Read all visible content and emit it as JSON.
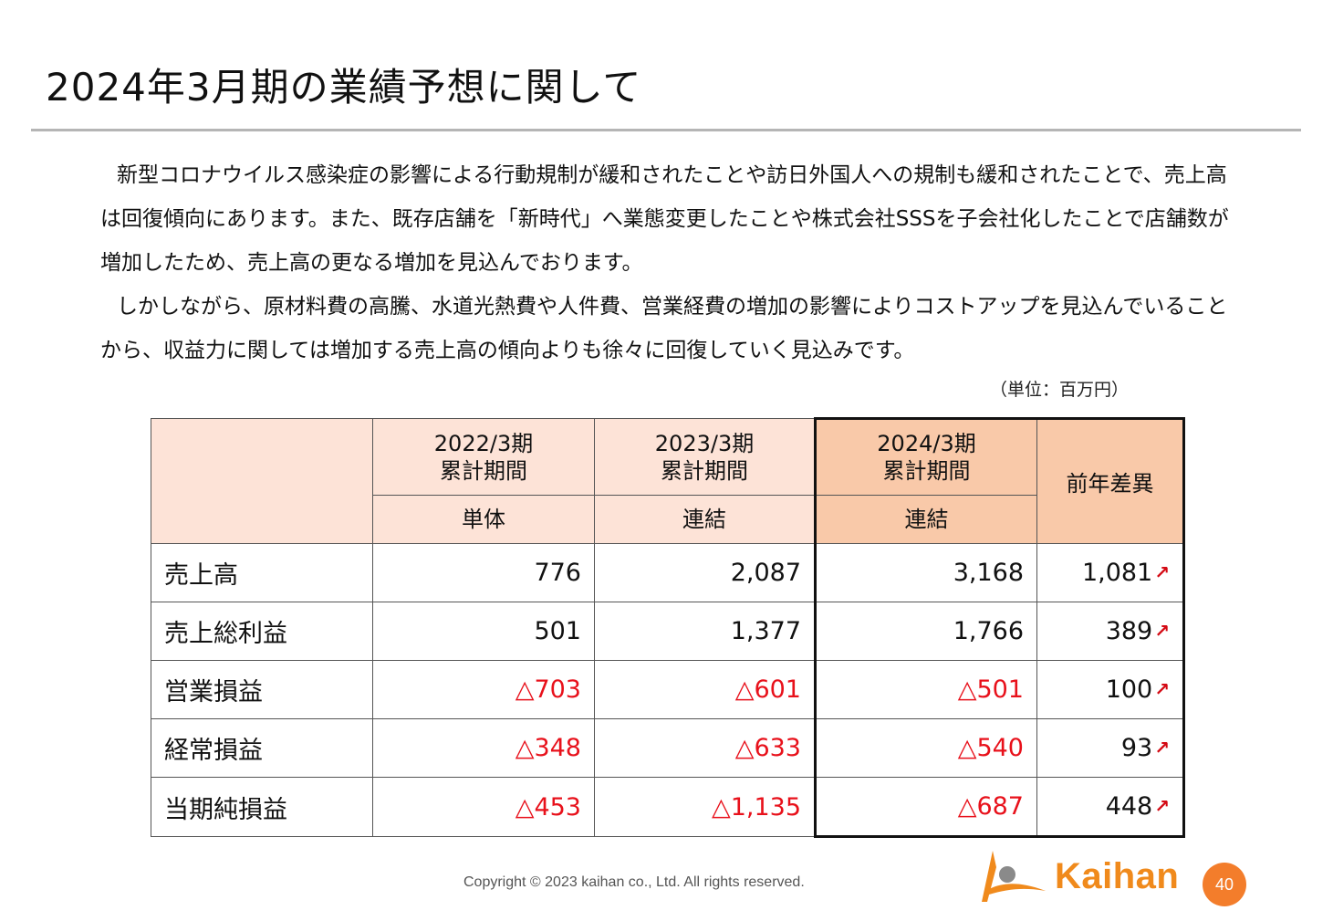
{
  "slide": {
    "title": "2024年3月期の業績予想に関して",
    "paragraphs": [
      "新型コロナウイルス感染症の影響による行動規制が緩和されたことや訪日外国人への規制も緩和されたことで、売上高は回復傾向にあります。また、既存店舗を「新時代」へ業態変更したことや株式会社SSSを子会社化したことで店舗数が増加したため、売上高の更なる増加を見込んでおります。",
      "しかしながら、原材料費の高騰、水道光熱費や人件費、営業経費の増加の影響によりコストアップを見込んでいることから、収益力に関しては増加する売上高の傾向よりも徐々に回復していく見込みです。"
    ],
    "unit": "（単位：百万円）"
  },
  "table": {
    "periods": [
      {
        "year": "2022/3期",
        "span": "累計期間",
        "basis": "単体"
      },
      {
        "year": "2023/3期",
        "span": "累計期間",
        "basis": "連結"
      },
      {
        "year": "2024/3期",
        "span": "累計期間",
        "basis": "連結"
      }
    ],
    "diff_header": "前年差異",
    "rows": [
      {
        "label": "売上高",
        "v2022": "776",
        "v2023": "2,087",
        "v2024": "3,168",
        "diff": "1,081"
      },
      {
        "label": "売上総利益",
        "v2022": "501",
        "v2023": "1,377",
        "v2024": "1,766",
        "diff": "389"
      },
      {
        "label": "営業損益",
        "v2022": "△703",
        "v2023": "△601",
        "v2024": "△501",
        "diff": "100"
      },
      {
        "label": "経常損益",
        "v2022": "△348",
        "v2023": "△633",
        "v2024": "△540",
        "diff": "93"
      },
      {
        "label": "当期純損益",
        "v2022": "△453",
        "v2023": "△1,135",
        "v2024": "△687",
        "diff": "448"
      }
    ],
    "diff_arrow_icon": "up-right-arrow",
    "negative_color": "#e8111b",
    "highlight_header_color": "#f9c9a9",
    "header_color": "#fde3d7"
  },
  "footer": {
    "copyright": "Copyright © 2023 kaihan co., Ltd. All rights reserved.",
    "logo_text": "Kaihan",
    "page_number": "40",
    "brand_color": "#f37d2b"
  }
}
